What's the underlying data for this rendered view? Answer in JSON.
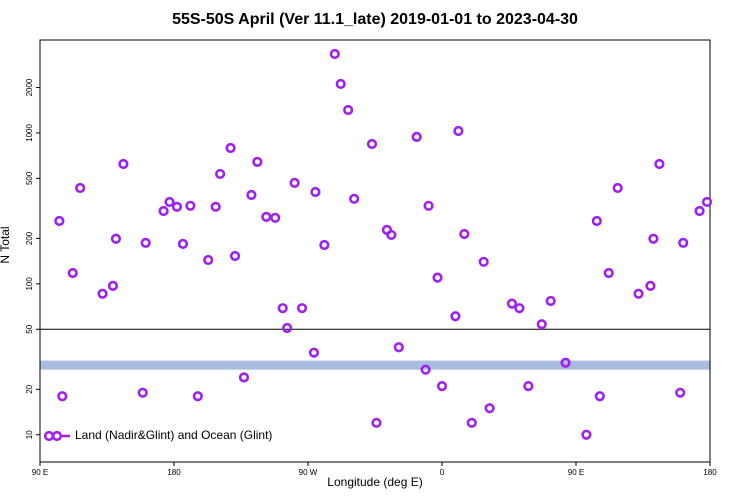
{
  "chart_data": {
    "type": "scatter",
    "title": "55S-50S April (Ver 11.1_late)   2019-01-01 to 2023-04-30",
    "x_label": "Longitude (deg E)",
    "y_label": "N Total",
    "log_y": true,
    "legend": "bottom-left",
    "xlim": [
      90,
      540
    ],
    "ylim": [
      6.6,
      4130
    ],
    "xticks": [
      {
        "value": 90,
        "label": "90 E"
      },
      180,
      {
        "value": 270,
        "label": "90 W"
      },
      {
        "value": 360,
        "label": "0"
      },
      {
        "value": 450,
        "label": "90 E"
      },
      {
        "value": 540,
        "label": "180"
      }
    ],
    "yticks": [
      10,
      20,
      50,
      100,
      200,
      500,
      1000,
      2000
    ],
    "reference_line": 50,
    "band": [
      27,
      31
    ],
    "band_color": "#a8bddf",
    "series": [
      {
        "name": "Land (Nadir&Glint) and Ocean (Glint)",
        "color": "#a020f0",
        "x": [
          103,
          105,
          112,
          117,
          132,
          139,
          141,
          146,
          159,
          161,
          173,
          177,
          182,
          186,
          191,
          196,
          203,
          208,
          211,
          218,
          221,
          227,
          232,
          236,
          242,
          248,
          253,
          256,
          261,
          266,
          274,
          275,
          281,
          288,
          292,
          297,
          301,
          313,
          316,
          323,
          326,
          331,
          343,
          349,
          351,
          357,
          360,
          369,
          371,
          375,
          380,
          388,
          392,
          407,
          412,
          418,
          427,
          433,
          443,
          457,
          464,
          466,
          472,
          478,
          492,
          500,
          502,
          506,
          520,
          522,
          533,
          538
        ],
        "values": [
          261,
          18,
          118,
          432,
          86,
          97,
          199,
          623,
          19,
          187,
          304,
          349,
          324,
          184,
          329,
          18,
          144,
          324,
          535,
          795,
          153,
          24,
          388,
          643,
          278,
          274,
          69,
          51,
          467,
          69,
          35,
          406,
          181,
          3334,
          2113,
          1419,
          366,
          845,
          12,
          228,
          211,
          38,
          942,
          27,
          329,
          110,
          21,
          61,
          1030,
          214,
          12,
          140,
          15,
          74,
          69,
          21,
          54,
          77,
          30,
          10,
          261,
          18,
          118,
          432,
          86,
          97,
          199,
          623,
          19,
          187,
          304,
          349
        ]
      }
    ]
  }
}
